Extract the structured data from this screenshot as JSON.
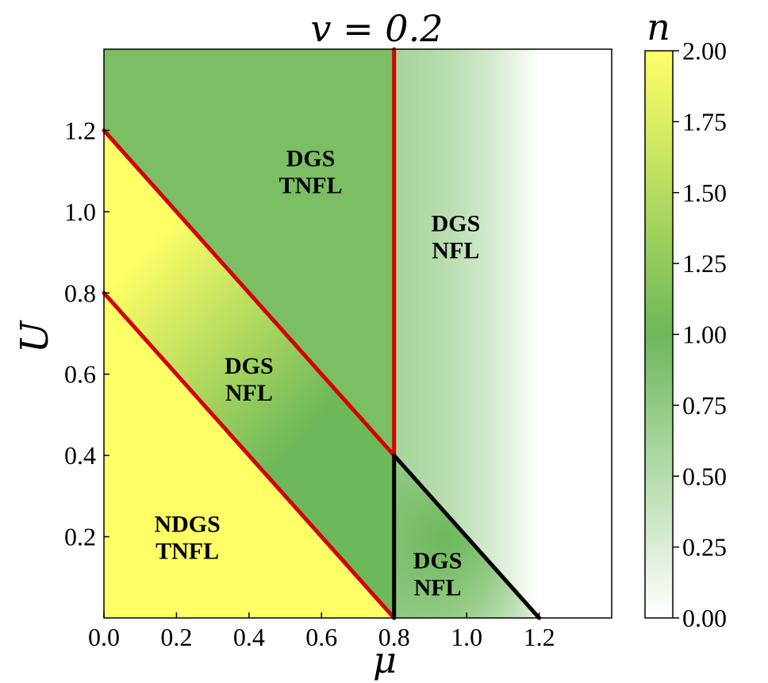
{
  "chart_data": {
    "type": "heatmap",
    "title": "v = 0.2",
    "xlabel": "μ",
    "ylabel": "U",
    "xlim": [
      0,
      1.4
    ],
    "ylim": [
      0,
      1.4
    ],
    "x_ticks": [
      "0.0",
      "0.2",
      "0.4",
      "0.6",
      "0.8",
      "1.0",
      "1.2"
    ],
    "y_ticks": [
      "0.2",
      "0.4",
      "0.6",
      "0.8",
      "1.0",
      "1.2"
    ],
    "colorbar": {
      "label": "n",
      "range": [
        0,
        2
      ],
      "ticks": [
        "0.00",
        "0.25",
        "0.50",
        "0.75",
        "1.00",
        "1.25",
        "1.50",
        "1.75",
        "2.00"
      ],
      "colors": {
        "low": "#ffffff",
        "mid": "#6cb85a",
        "high": "#ffff66"
      }
    },
    "boundaries": [
      {
        "color": "#d40000",
        "points": [
          [
            0,
            0.8
          ],
          [
            0.8,
            0
          ]
        ]
      },
      {
        "color": "#d40000",
        "points": [
          [
            0,
            1.2
          ],
          [
            0.8,
            0.4
          ]
        ]
      },
      {
        "color": "#d40000",
        "points": [
          [
            0.8,
            0.4
          ],
          [
            0.8,
            1.4
          ]
        ]
      },
      {
        "color": "#000000",
        "points": [
          [
            0.8,
            0
          ],
          [
            0.8,
            0.4
          ]
        ]
      },
      {
        "color": "#000000",
        "points": [
          [
            0.8,
            0.4
          ],
          [
            1.2,
            0
          ]
        ]
      }
    ],
    "regions": [
      {
        "line1": "DGS",
        "line2": "TNFL",
        "x": 0.57,
        "y": 1.1
      },
      {
        "line1": "DGS",
        "line2": "NFL",
        "x": 0.97,
        "y": 0.94
      },
      {
        "line1": "DGS",
        "line2": "NFL",
        "x": 0.4,
        "y": 0.59
      },
      {
        "line1": "NDGS",
        "line2": "TNFL",
        "x": 0.23,
        "y": 0.2
      },
      {
        "line1": "DGS",
        "line2": "NFL",
        "x": 0.92,
        "y": 0.11
      }
    ]
  }
}
